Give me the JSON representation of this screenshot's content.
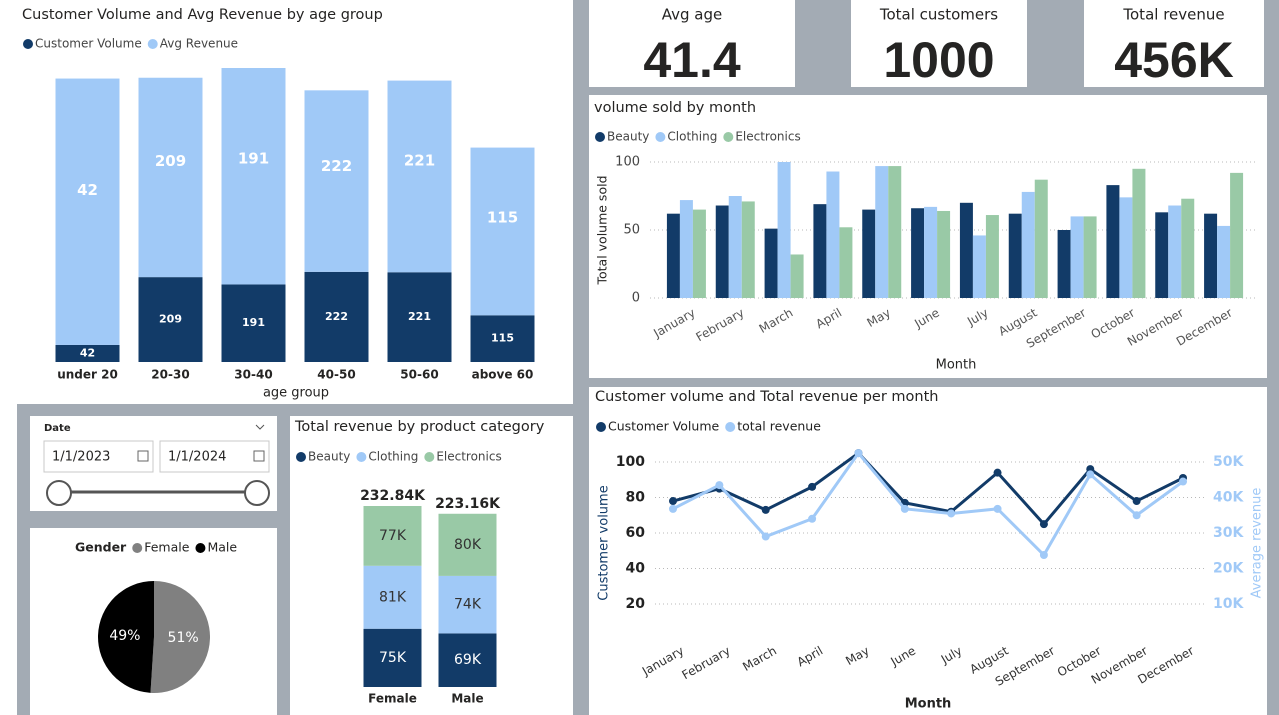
{
  "cards": [
    {
      "label": "Avg age",
      "value": "41.4"
    },
    {
      "label": "Total customers",
      "value": "1000"
    },
    {
      "label": "Total revenue",
      "value": "456K"
    }
  ],
  "slicer": {
    "title": "Date",
    "start": "1/1/2023",
    "end": "1/1/2024"
  },
  "chart_data": [
    {
      "type": "stacked_bar",
      "title": "Customer Volume and Avg Revenue by age group",
      "x_label": "age group",
      "categories": [
        "under 20",
        "20-30",
        "30-40",
        "40-50",
        "50-60",
        "above 60"
      ],
      "series": [
        {
          "name": "Customer Volume",
          "color": "#123b68",
          "values": [
            42,
            209,
            191,
            222,
            221,
            115
          ]
        },
        {
          "name": "Avg Revenue",
          "color": "#a0c9f7",
          "values": [
            656,
            491,
            533,
            447,
            472,
            413
          ]
        }
      ]
    },
    {
      "type": "pie",
      "legend_title": "Gender",
      "categories": [
        "Female",
        "Male"
      ],
      "values": [
        51,
        49
      ],
      "value_labels": [
        "51%",
        "49%"
      ],
      "colors": [
        "#808080",
        "#000000"
      ]
    },
    {
      "type": "stacked_bar",
      "title": "Total revenue by product category",
      "categories": [
        "Female",
        "Male"
      ],
      "series": [
        {
          "name": "Beauty",
          "color": "#123b68",
          "values": [
            75000,
            69000
          ],
          "value_labels": [
            "75K",
            "69K"
          ]
        },
        {
          "name": "Clothing",
          "color": "#a0c9f7",
          "values": [
            81000,
            74000
          ],
          "value_labels": [
            "81K",
            "74K"
          ]
        },
        {
          "name": "Electronics",
          "color": "#99c9a6",
          "values": [
            77000,
            80000
          ],
          "value_labels": [
            "77K",
            "80K"
          ]
        }
      ],
      "totals": [
        232840,
        223160
      ],
      "total_labels": [
        "232.84K",
        "223.16K"
      ]
    },
    {
      "type": "grouped_bar",
      "title": "volume sold by month",
      "x_label": "Month",
      "y_label": "Total volume sold",
      "categories": [
        "January",
        "February",
        "March",
        "April",
        "May",
        "June",
        "July",
        "August",
        "September",
        "October",
        "November",
        "December"
      ],
      "series": [
        {
          "name": "Beauty",
          "color": "#123b68",
          "values": [
            62,
            68,
            51,
            69,
            65,
            66,
            70,
            62,
            50,
            83,
            63,
            62
          ]
        },
        {
          "name": "Clothing",
          "color": "#a0c9f7",
          "values": [
            72,
            75,
            100,
            93,
            97,
            67,
            46,
            78,
            60,
            74,
            68,
            53
          ]
        },
        {
          "name": "Electronics",
          "color": "#99c9a6",
          "values": [
            65,
            71,
            32,
            52,
            97,
            64,
            61,
            87,
            60,
            95,
            73,
            92
          ]
        }
      ],
      "ylim": [
        0,
        100
      ],
      "yticks": [
        0,
        50,
        100
      ],
      "grid": true
    },
    {
      "type": "line",
      "title": "Customer volume and Total revenue per month",
      "x_label": "Month",
      "y_label": "Customer volume",
      "y2_label": "Average revenue",
      "categories": [
        "January",
        "February",
        "March",
        "April",
        "May",
        "June",
        "July",
        "August",
        "September",
        "October",
        "November",
        "December"
      ],
      "series": [
        {
          "name": "Customer Volume",
          "color": "#123b68",
          "values": [
            78,
            85,
            73,
            86,
            105,
            77,
            72,
            94,
            65,
            96,
            78,
            91
          ]
        },
        {
          "name": "total revenue",
          "color": "#a0c9f7",
          "axis": "y2",
          "values": [
            36800,
            43500,
            29000,
            34000,
            52500,
            36800,
            35500,
            36800,
            23800,
            46500,
            35000,
            44500
          ]
        }
      ],
      "ylim": [
        10,
        110
      ],
      "yticks": [
        20,
        40,
        60,
        80,
        100
      ],
      "y2lim": [
        5000,
        55000
      ],
      "y2ticks": [
        {
          "value": 10000,
          "label": "10K"
        },
        {
          "value": 20000,
          "label": "20K"
        },
        {
          "value": 30000,
          "label": "30K"
        },
        {
          "value": 40000,
          "label": "40K"
        },
        {
          "value": 50000,
          "label": "50K"
        }
      ],
      "grid": true
    }
  ]
}
